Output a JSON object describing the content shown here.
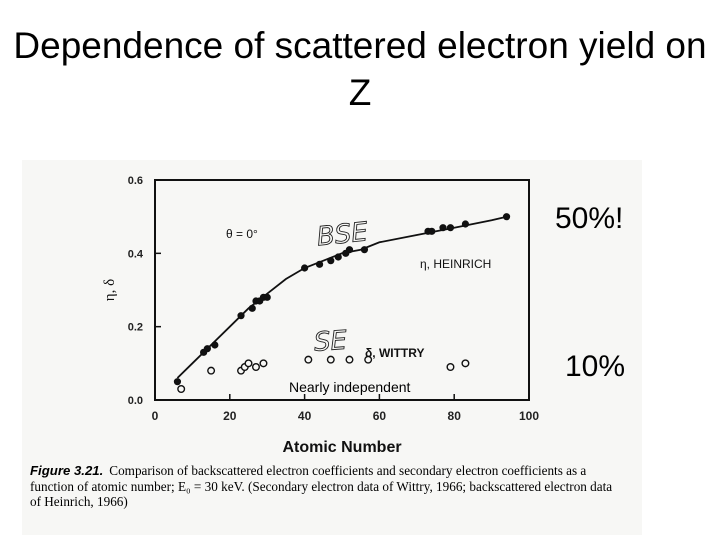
{
  "slide": {
    "title": "Dependence of scattered electron yield on Z",
    "callout_bse": "50%!",
    "callout_se": "10%",
    "annotation": "Nearly independent"
  },
  "figure": {
    "handwritten_labels": [
      "BSE",
      "SE"
    ],
    "caption_label": "Figure 3.21.",
    "caption_text": "Comparison of backscattered electron coefficients and secondary electron coefficients as a function of atomic number; E₀ = 30 keV. (Secondary electron data of Wittry, 1966; backscattered electron data of Heinrich, 1966)"
  },
  "chart_data": {
    "type": "scatter",
    "xlabel": "Atomic Number",
    "ylabel": "η, δ",
    "xlim": [
      0,
      100
    ],
    "ylim": [
      0,
      0.6
    ],
    "xticks": [
      "0",
      "20",
      "40",
      "60",
      "80",
      "100"
    ],
    "yticks": [
      "0.0",
      "0.2",
      "0.4",
      "0.6"
    ],
    "grid": false,
    "inset_text": "θ = 0°",
    "series": [
      {
        "name": "η, HEINRICH",
        "marker": "filled-circle",
        "color": "#111111",
        "x": [
          6,
          13,
          14,
          16,
          23,
          26,
          27,
          28,
          29,
          30,
          40,
          44,
          47,
          49,
          51,
          52,
          56,
          73,
          74,
          77,
          79,
          83,
          94
        ],
        "y": [
          0.05,
          0.13,
          0.14,
          0.15,
          0.23,
          0.25,
          0.27,
          0.27,
          0.28,
          0.28,
          0.36,
          0.37,
          0.38,
          0.39,
          0.4,
          0.41,
          0.41,
          0.46,
          0.46,
          0.47,
          0.47,
          0.48,
          0.5
        ]
      },
      {
        "name": "δ, WITTRY",
        "marker": "open-circle",
        "color": "#111111",
        "x": [
          7,
          15,
          23,
          24,
          25,
          27,
          29,
          41,
          47,
          52,
          57,
          79,
          83
        ],
        "y": [
          0.03,
          0.08,
          0.08,
          0.09,
          0.1,
          0.09,
          0.1,
          0.11,
          0.11,
          0.11,
          0.11,
          0.09,
          0.1
        ]
      }
    ],
    "fit_curve": {
      "x": [
        6,
        10,
        15,
        20,
        25,
        30,
        35,
        40,
        45,
        50,
        55,
        60,
        70,
        80,
        90,
        94
      ],
      "y": [
        0.06,
        0.1,
        0.15,
        0.2,
        0.25,
        0.29,
        0.33,
        0.36,
        0.38,
        0.4,
        0.41,
        0.43,
        0.45,
        0.47,
        0.49,
        0.5
      ]
    }
  }
}
